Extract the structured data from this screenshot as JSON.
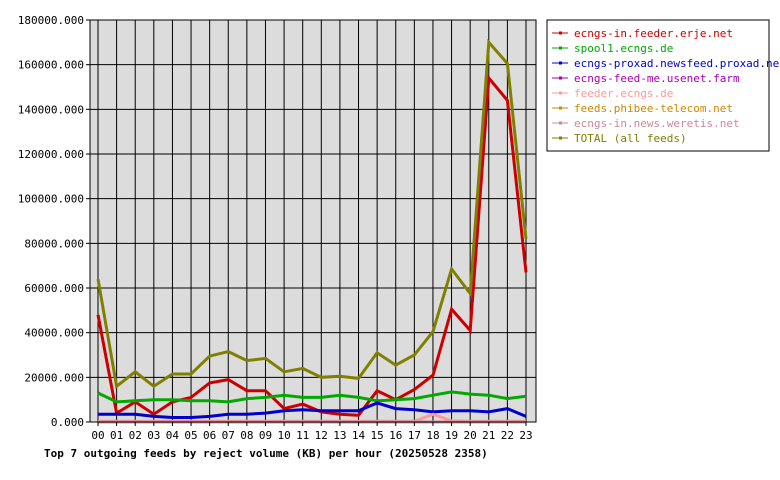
{
  "chart_data": {
    "type": "line",
    "title": "Top 7 outgoing feeds by reject volume (KB) per hour (20250528 2358)",
    "categories": [
      "00",
      "01",
      "02",
      "03",
      "04",
      "05",
      "06",
      "07",
      "08",
      "09",
      "10",
      "11",
      "12",
      "13",
      "14",
      "15",
      "16",
      "17",
      "18",
      "19",
      "20",
      "21",
      "22",
      "23"
    ],
    "ylim": [
      0,
      180000
    ],
    "yticks": [
      "0.000",
      "20000.000",
      "40000.000",
      "60000.000",
      "80000.000",
      "100000.000",
      "120000.000",
      "140000.000",
      "160000.000",
      "180000.000"
    ],
    "grid": true,
    "legend_position": "right",
    "series": [
      {
        "name": "ecngs-in.feeder.erje.net",
        "color": "#cc0000",
        "values": [
          48000,
          4000,
          9000,
          3500,
          9000,
          11000,
          17500,
          19000,
          14000,
          14000,
          6000,
          8000,
          4500,
          3500,
          3000,
          14000,
          10000,
          14500,
          21000,
          50500,
          41000,
          154000,
          144000,
          67000
        ]
      },
      {
        "name": "spool1.ecngs.de",
        "color": "#00aa00",
        "values": [
          13000,
          9000,
          9500,
          10000,
          10000,
          9500,
          9500,
          9000,
          10500,
          11000,
          12000,
          11000,
          11000,
          12000,
          11000,
          9500,
          10000,
          10500,
          12000,
          13500,
          12500,
          12000,
          10500,
          11500
        ]
      },
      {
        "name": "ecngs-proxad.newsfeed.proxad.net",
        "color": "#0000cc",
        "values": [
          3500,
          3500,
          3500,
          2500,
          2000,
          2000,
          2500,
          3500,
          3500,
          4000,
          5000,
          5500,
          5000,
          5000,
          5000,
          8500,
          6000,
          5500,
          4500,
          5000,
          5000,
          4500,
          6000,
          2500
        ]
      },
      {
        "name": "ecngs-feed-me.usenet.farm",
        "color": "#aa00aa",
        "values": [
          0,
          0,
          0,
          0,
          0,
          0,
          0,
          0,
          0,
          0,
          0,
          0,
          0,
          0,
          0,
          0,
          0,
          0,
          0,
          0,
          0,
          0,
          0,
          0
        ]
      },
      {
        "name": "feeder.ecngs.de",
        "color": "#ff9999",
        "values": [
          300,
          300,
          300,
          300,
          300,
          300,
          300,
          300,
          300,
          300,
          300,
          300,
          300,
          300,
          300,
          300,
          300,
          300,
          3500,
          500,
          300,
          300,
          300,
          300
        ]
      },
      {
        "name": "feeds.phibee-telecom.net",
        "color": "#cc8800",
        "values": [
          0,
          0,
          0,
          0,
          0,
          0,
          0,
          0,
          0,
          0,
          0,
          0,
          0,
          0,
          0,
          0,
          0,
          0,
          0,
          0,
          0,
          0,
          0,
          0
        ]
      },
      {
        "name": "ecngs-in.news.weretis.net",
        "color": "#cc8899",
        "values": [
          0,
          0,
          0,
          0,
          0,
          0,
          0,
          0,
          0,
          0,
          0,
          0,
          0,
          0,
          0,
          0,
          0,
          0,
          0,
          0,
          0,
          0,
          0,
          0
        ]
      },
      {
        "name": "TOTAL (all feeds)",
        "color": "#808000",
        "values": [
          64000,
          16000,
          22500,
          16000,
          21500,
          21500,
          29500,
          31500,
          27500,
          28500,
          22500,
          24000,
          20000,
          20500,
          19500,
          31000,
          25500,
          30000,
          40500,
          68500,
          57500,
          170000,
          160500,
          82000
        ]
      }
    ]
  }
}
